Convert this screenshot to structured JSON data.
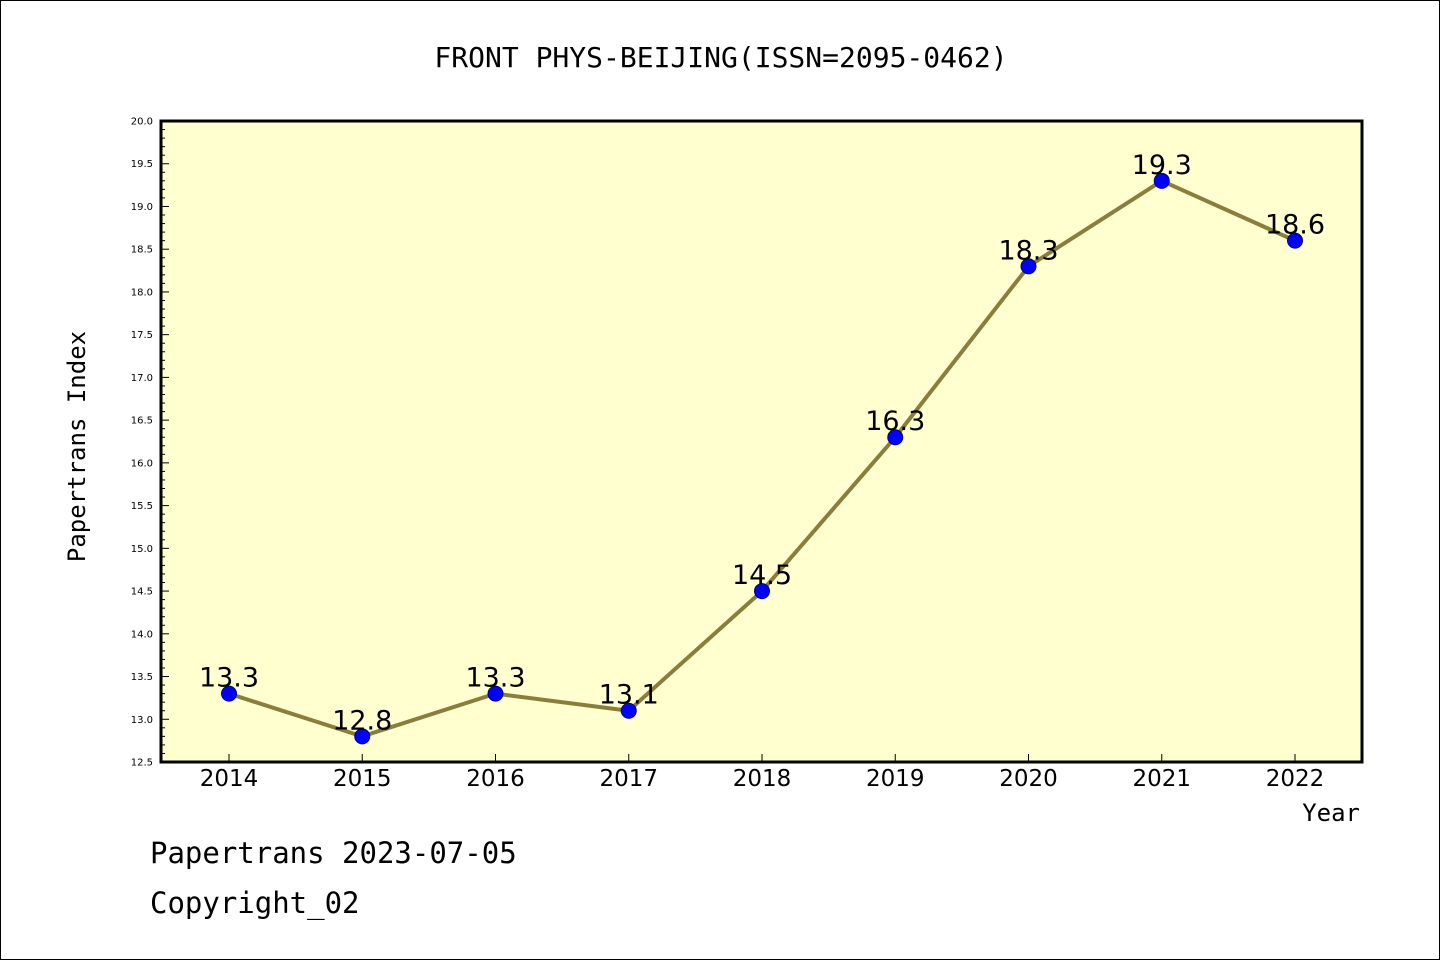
{
  "chart_data": {
    "type": "line",
    "title": "FRONT PHYS-BEIJING(ISSN=2095-0462)",
    "xlabel": "Year",
    "ylabel": "Papertrans Index",
    "categories": [
      "2014",
      "2015",
      "2016",
      "2017",
      "2018",
      "2019",
      "2020",
      "2021",
      "2022"
    ],
    "series": [
      {
        "values": [
          13.3,
          12.8,
          13.3,
          13.1,
          14.5,
          16.3,
          18.3,
          19.3,
          18.6
        ],
        "labels": [
          "13.3",
          "12.8",
          "13.3",
          "13.1",
          "14.5",
          "16.3",
          "18.3",
          "19.3",
          "18.6"
        ]
      }
    ],
    "ylim": [
      12.5,
      20.0
    ],
    "yticks": [
      "12.5",
      "13.0",
      "13.5",
      "14.0",
      "14.5",
      "15.0",
      "15.5",
      "16.0",
      "16.5",
      "17.0",
      "17.5",
      "18.0",
      "18.5",
      "19.0",
      "19.5",
      "20.0"
    ],
    "grid": false,
    "colors": {
      "plot_background": "#ffffd0",
      "line": "#8b7d3a",
      "marker": "#0000ff",
      "marker_edge": "#000080"
    }
  },
  "footer": {
    "line1": "Papertrans 2023-07-05",
    "line2": "Copyright_02"
  }
}
